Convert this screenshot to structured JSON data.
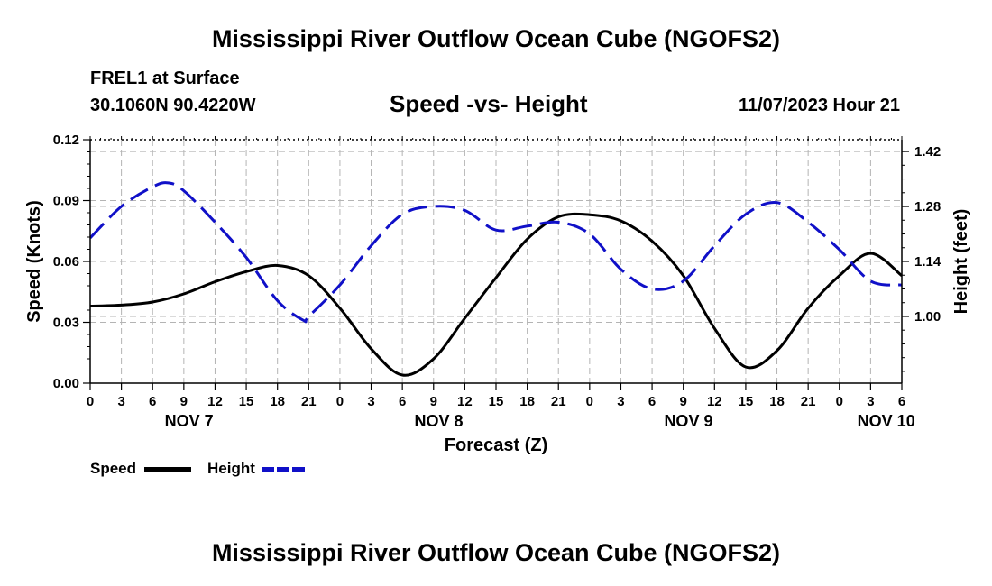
{
  "page": {
    "title": "Mississippi River Outflow Ocean Cube (NGOFS2)",
    "footer_title": "Mississippi River Outflow Ocean Cube (NGOFS2)",
    "station": "FREL1 at Surface",
    "coordinates": "30.1060N  90.4220W",
    "heading": "Speed -vs- Height",
    "datetime": "11/07/2023 Hour 21"
  },
  "legend": {
    "speed_label": "Speed",
    "height_label": "Height"
  },
  "colors": {
    "speed": "#000000",
    "height": "#1010c8",
    "grid": "#b4b4b4"
  },
  "chart_data": {
    "type": "line",
    "title": "Speed -vs- Height",
    "xlabel": "Forecast (Z)",
    "ylabel": "Speed (Knots)",
    "y2label": "Height (feet)",
    "x_unit": "hours from NOV 7 00Z",
    "xlim": [
      0,
      78
    ],
    "ylim": [
      0,
      0.12
    ],
    "y2lim": [
      0.83,
      1.45
    ],
    "x_ticks": [
      0,
      3,
      6,
      9,
      12,
      15,
      18,
      21,
      24,
      27,
      30,
      33,
      36,
      39,
      42,
      45,
      48,
      51,
      54,
      57,
      60,
      63,
      66,
      69,
      72,
      75,
      78
    ],
    "x_tick_labels": [
      "0",
      "3",
      "6",
      "9",
      "12",
      "15",
      "18",
      "21",
      "0",
      "3",
      "6",
      "9",
      "12",
      "15",
      "18",
      "21",
      "0",
      "3",
      "6",
      "9",
      "12",
      "15",
      "18",
      "21",
      "0",
      "3",
      "6"
    ],
    "day_labels": [
      {
        "x": 9.5,
        "label": "NOV 7"
      },
      {
        "x": 33.5,
        "label": "NOV 8"
      },
      {
        "x": 57.5,
        "label": "NOV 9"
      },
      {
        "x": 76.5,
        "label": "NOV 10"
      }
    ],
    "y_ticks": [
      0.0,
      0.03,
      0.06,
      0.09,
      0.12
    ],
    "y_tick_labels": [
      "0.00",
      "0.03",
      "0.06",
      "0.09",
      "0.12"
    ],
    "y2_ticks": [
      1.0,
      1.14,
      1.28,
      1.42
    ],
    "y2_tick_labels": [
      "1.00",
      "1.14",
      "1.28",
      "1.42"
    ],
    "series": [
      {
        "name": "Speed",
        "axis": "left",
        "style": "solid",
        "x": [
          0,
          3,
          6,
          9,
          12,
          15,
          18,
          21,
          24,
          27,
          30,
          33,
          36,
          39,
          42,
          45,
          48,
          51,
          54,
          57,
          60,
          63,
          66,
          69,
          72,
          75,
          78
        ],
        "values": [
          0.038,
          0.0385,
          0.04,
          0.044,
          0.05,
          0.055,
          0.058,
          0.053,
          0.037,
          0.017,
          0.004,
          0.012,
          0.032,
          0.052,
          0.071,
          0.082,
          0.083,
          0.08,
          0.07,
          0.053,
          0.027,
          0.008,
          0.016,
          0.037,
          0.053,
          0.064,
          0.053
        ]
      },
      {
        "name": "Height",
        "axis": "right",
        "style": "dashed",
        "x": [
          0,
          3,
          6,
          7.5,
          9,
          12,
          15,
          18,
          20.5,
          21,
          24,
          27,
          30,
          33,
          36,
          39,
          42,
          45,
          48,
          51,
          54,
          57,
          60,
          63,
          66,
          69,
          72,
          75,
          78
        ],
        "values": [
          1.2,
          1.28,
          1.33,
          1.34,
          1.32,
          1.24,
          1.15,
          1.04,
          0.99,
          1.0,
          1.08,
          1.18,
          1.26,
          1.28,
          1.27,
          1.22,
          1.23,
          1.24,
          1.21,
          1.12,
          1.07,
          1.09,
          1.18,
          1.26,
          1.29,
          1.24,
          1.17,
          1.09,
          1.08
        ]
      }
    ],
    "legend_position": "bottom-left",
    "grid": true
  }
}
